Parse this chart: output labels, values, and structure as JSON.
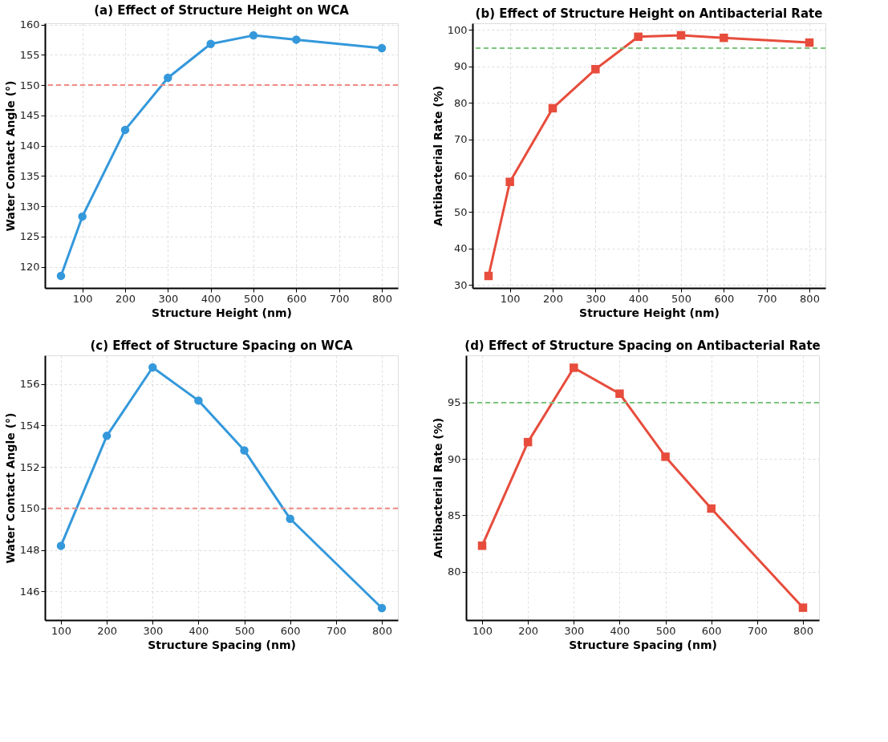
{
  "chart_data": [
    {
      "type": "line",
      "title": "(a) Effect of Structure Height on WCA",
      "xlabel": "Structure Height (nm)",
      "ylabel": "Water Contact Angle (°)",
      "x": [
        50,
        100,
        200,
        300,
        400,
        500,
        600,
        800
      ],
      "series": [
        {
          "color": "#3498db",
          "values": [
            118.5,
            128.3,
            142.6,
            151.2,
            156.8,
            158.2,
            157.5,
            156.1
          ]
        }
      ],
      "xlim": [
        12.5,
        837.5
      ],
      "xticks": [
        100,
        200,
        300,
        400,
        500,
        600,
        700,
        800
      ],
      "ylim": [
        116.5,
        160.2
      ],
      "yticks": [
        120,
        125,
        130,
        135,
        140,
        145,
        150,
        155,
        160
      ],
      "ref_lines": [
        {
          "axis": "y",
          "value": 150,
          "color": "#f08a84",
          "line_style": "dashed"
        }
      ],
      "grid": true,
      "marker": "circle",
      "line_style": "solid"
    },
    {
      "type": "line",
      "title": "(b) Effect of Structure Height on Antibacterial Rate",
      "xlabel": "Structure Height (nm)",
      "ylabel": "Antibacterial Rate (%)",
      "x": [
        50,
        100,
        200,
        300,
        400,
        500,
        600,
        800
      ],
      "series": [
        {
          "color": "#e74c3c",
          "values": [
            32.5,
            58.3,
            78.5,
            89.2,
            98.1,
            98.5,
            97.8,
            96.5
          ]
        }
      ],
      "xlim": [
        12.5,
        837.5
      ],
      "xticks": [
        100,
        200,
        300,
        400,
        500,
        600,
        700,
        800
      ],
      "ylim": [
        29.2,
        101.8
      ],
      "yticks": [
        30,
        40,
        50,
        60,
        70,
        80,
        90,
        100
      ],
      "ref_lines": [
        {
          "axis": "y",
          "value": 95,
          "color": "#7cc47c",
          "line_style": "dashed"
        }
      ],
      "grid": true,
      "marker": "square",
      "line_style": "solid"
    },
    {
      "type": "line",
      "title": "(c) Effect of Structure Spacing on WCA",
      "xlabel": "Structure Spacing (nm)",
      "ylabel": "Water Contact Angle (°)",
      "x": [
        100,
        200,
        300,
        400,
        500,
        600,
        800
      ],
      "series": [
        {
          "color": "#3498db",
          "values": [
            148.2,
            153.5,
            156.8,
            155.2,
            152.8,
            149.5,
            145.2
          ]
        }
      ],
      "xlim": [
        65,
        835
      ],
      "xticks": [
        100,
        200,
        300,
        400,
        500,
        600,
        700,
        800
      ],
      "ylim": [
        144.62,
        157.38
      ],
      "yticks": [
        146,
        148,
        150,
        152,
        154,
        156
      ],
      "ref_lines": [
        {
          "axis": "y",
          "value": 150,
          "color": "#f08a84",
          "line_style": "dashed"
        }
      ],
      "grid": true,
      "marker": "circle",
      "line_style": "solid"
    },
    {
      "type": "line",
      "title": "(d) Effect of Structure Spacing on Antibacterial Rate",
      "xlabel": "Structure Spacing (nm)",
      "ylabel": "Antibacterial Rate (%)",
      "x": [
        100,
        200,
        300,
        400,
        500,
        600,
        800
      ],
      "series": [
        {
          "color": "#e74c3c",
          "values": [
            82.3,
            91.5,
            98.1,
            95.8,
            90.2,
            85.6,
            76.8
          ]
        }
      ],
      "xlim": [
        65,
        835
      ],
      "xticks": [
        100,
        200,
        300,
        400,
        500,
        600,
        700,
        800
      ],
      "ylim": [
        75.7,
        99.2
      ],
      "yticks": [
        80,
        85,
        90,
        95
      ],
      "ref_lines": [
        {
          "axis": "y",
          "value": 95,
          "color": "#7cc47c",
          "line_style": "dashed"
        }
      ],
      "grid": true,
      "marker": "square",
      "line_style": "solid"
    }
  ]
}
